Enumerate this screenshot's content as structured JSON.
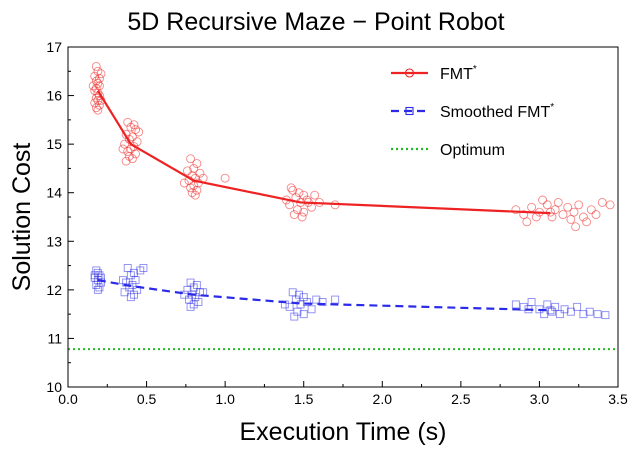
{
  "chart_data": {
    "type": "scatter",
    "title": "5D Recursive Maze − Point Robot",
    "xlabel": "Execution Time (s)",
    "ylabel": "Solution Cost",
    "xlim": [
      0,
      3.5
    ],
    "ylim": [
      10,
      17
    ],
    "xticks": [
      "0.0",
      "0.5",
      "1.0",
      "1.5",
      "2.0",
      "2.5",
      "3.0",
      "3.5"
    ],
    "yticks": [
      "10",
      "11",
      "12",
      "13",
      "14",
      "15",
      "16",
      "17"
    ],
    "grid": false,
    "legend_position": "top-right",
    "series": [
      {
        "name": "FMT*",
        "legend_base": "FMT",
        "legend_sup": "*",
        "color": "#ee2222",
        "marker": "circle",
        "line_style": "solid",
        "mean_x": [
          0.19,
          0.4,
          0.8,
          1.48,
          3.07
        ],
        "mean_y": [
          16.1,
          15.0,
          14.25,
          13.8,
          13.58
        ],
        "points": [
          [
            0.18,
            16.6
          ],
          [
            0.19,
            16.5
          ],
          [
            0.17,
            16.4
          ],
          [
            0.2,
            16.35
          ],
          [
            0.18,
            16.3
          ],
          [
            0.19,
            16.25
          ],
          [
            0.2,
            16.2
          ],
          [
            0.18,
            16.15
          ],
          [
            0.17,
            16.1
          ],
          [
            0.19,
            16.05
          ],
          [
            0.2,
            16.0
          ],
          [
            0.18,
            15.95
          ],
          [
            0.19,
            15.9
          ],
          [
            0.17,
            15.85
          ],
          [
            0.2,
            15.8
          ],
          [
            0.18,
            15.75
          ],
          [
            0.19,
            15.7
          ],
          [
            0.21,
            16.45
          ],
          [
            0.16,
            16.2
          ],
          [
            0.21,
            15.9
          ],
          [
            0.38,
            15.45
          ],
          [
            0.42,
            15.4
          ],
          [
            0.4,
            15.35
          ],
          [
            0.43,
            15.3
          ],
          [
            0.37,
            15.2
          ],
          [
            0.41,
            15.15
          ],
          [
            0.39,
            15.1
          ],
          [
            0.44,
            15.05
          ],
          [
            0.36,
            15.0
          ],
          [
            0.42,
            14.95
          ],
          [
            0.4,
            14.9
          ],
          [
            0.38,
            14.85
          ],
          [
            0.43,
            14.8
          ],
          [
            0.39,
            14.75
          ],
          [
            0.41,
            14.7
          ],
          [
            0.37,
            14.65
          ],
          [
            0.45,
            15.25
          ],
          [
            0.35,
            14.9
          ],
          [
            0.78,
            14.7
          ],
          [
            0.82,
            14.6
          ],
          [
            0.8,
            14.5
          ],
          [
            0.76,
            14.45
          ],
          [
            0.84,
            14.4
          ],
          [
            0.79,
            14.35
          ],
          [
            0.81,
            14.3
          ],
          [
            0.77,
            14.25
          ],
          [
            0.83,
            14.2
          ],
          [
            0.8,
            14.15
          ],
          [
            0.78,
            14.1
          ],
          [
            0.82,
            14.05
          ],
          [
            0.79,
            14.0
          ],
          [
            0.86,
            14.3
          ],
          [
            0.74,
            14.2
          ],
          [
            0.81,
            13.95
          ],
          [
            1.0,
            14.3
          ],
          [
            1.43,
            14.05
          ],
          [
            1.47,
            14.0
          ],
          [
            1.5,
            13.95
          ],
          [
            1.45,
            13.9
          ],
          [
            1.52,
            13.85
          ],
          [
            1.48,
            13.8
          ],
          [
            1.41,
            13.75
          ],
          [
            1.55,
            13.7
          ],
          [
            1.46,
            13.65
          ],
          [
            1.5,
            13.6
          ],
          [
            1.44,
            13.55
          ],
          [
            1.53,
            13.8
          ],
          [
            1.39,
            13.85
          ],
          [
            1.57,
            13.95
          ],
          [
            1.49,
            13.5
          ],
          [
            1.6,
            13.8
          ],
          [
            1.7,
            13.75
          ],
          [
            1.42,
            14.1
          ],
          [
            2.85,
            13.65
          ],
          [
            2.9,
            13.55
          ],
          [
            2.95,
            13.7
          ],
          [
            3.0,
            13.6
          ],
          [
            3.05,
            13.75
          ],
          [
            3.08,
            13.5
          ],
          [
            3.1,
            13.65
          ],
          [
            3.12,
            13.8
          ],
          [
            3.15,
            13.55
          ],
          [
            3.18,
            13.7
          ],
          [
            3.2,
            13.45
          ],
          [
            3.22,
            13.6
          ],
          [
            3.25,
            13.75
          ],
          [
            3.28,
            13.5
          ],
          [
            3.3,
            13.4
          ],
          [
            3.33,
            13.65
          ],
          [
            3.36,
            13.55
          ],
          [
            3.4,
            13.8
          ],
          [
            3.45,
            13.75
          ],
          [
            3.23,
            13.3
          ],
          [
            2.92,
            13.4
          ],
          [
            3.02,
            13.85
          ],
          [
            2.98,
            13.5
          ],
          [
            3.07,
            13.6
          ]
        ]
      },
      {
        "name": "Smoothed FMT*",
        "legend_base": "Smoothed FMT",
        "legend_sup": "*",
        "color": "#2a2ae8",
        "marker": "square",
        "line_style": "dashed",
        "mean_x": [
          0.19,
          0.4,
          0.8,
          1.48,
          3.07
        ],
        "mean_y": [
          12.2,
          12.08,
          11.9,
          11.72,
          11.58
        ],
        "points": [
          [
            0.18,
            12.4
          ],
          [
            0.19,
            12.35
          ],
          [
            0.2,
            12.3
          ],
          [
            0.17,
            12.25
          ],
          [
            0.19,
            12.2
          ],
          [
            0.21,
            12.15
          ],
          [
            0.18,
            12.1
          ],
          [
            0.2,
            12.05
          ],
          [
            0.19,
            12.0
          ],
          [
            0.17,
            12.3
          ],
          [
            0.21,
            12.25
          ],
          [
            0.38,
            12.45
          ],
          [
            0.42,
            12.35
          ],
          [
            0.4,
            12.3
          ],
          [
            0.43,
            12.2
          ],
          [
            0.37,
            12.15
          ],
          [
            0.41,
            12.1
          ],
          [
            0.39,
            12.05
          ],
          [
            0.44,
            12.0
          ],
          [
            0.36,
            11.95
          ],
          [
            0.42,
            11.9
          ],
          [
            0.4,
            11.85
          ],
          [
            0.46,
            12.4
          ],
          [
            0.48,
            12.45
          ],
          [
            0.35,
            12.2
          ],
          [
            0.78,
            12.15
          ],
          [
            0.82,
            12.1
          ],
          [
            0.8,
            12.05
          ],
          [
            0.76,
            12.0
          ],
          [
            0.84,
            11.95
          ],
          [
            0.79,
            11.9
          ],
          [
            0.81,
            11.85
          ],
          [
            0.77,
            11.8
          ],
          [
            0.83,
            11.75
          ],
          [
            0.8,
            11.7
          ],
          [
            0.78,
            11.65
          ],
          [
            0.86,
            11.95
          ],
          [
            0.74,
            11.9
          ],
          [
            1.43,
            11.95
          ],
          [
            1.47,
            11.9
          ],
          [
            1.5,
            11.85
          ],
          [
            1.45,
            11.8
          ],
          [
            1.52,
            11.75
          ],
          [
            1.48,
            11.7
          ],
          [
            1.41,
            11.65
          ],
          [
            1.55,
            11.6
          ],
          [
            1.46,
            11.55
          ],
          [
            1.5,
            11.5
          ],
          [
            1.44,
            11.45
          ],
          [
            1.58,
            11.8
          ],
          [
            1.62,
            11.75
          ],
          [
            1.38,
            11.7
          ],
          [
            1.7,
            11.8
          ],
          [
            2.85,
            11.7
          ],
          [
            2.9,
            11.65
          ],
          [
            2.95,
            11.75
          ],
          [
            3.0,
            11.6
          ],
          [
            3.05,
            11.7
          ],
          [
            3.08,
            11.55
          ],
          [
            3.1,
            11.65
          ],
          [
            3.13,
            11.5
          ],
          [
            3.16,
            11.6
          ],
          [
            3.2,
            11.55
          ],
          [
            3.24,
            11.65
          ],
          [
            3.28,
            11.5
          ],
          [
            3.32,
            11.55
          ],
          [
            3.37,
            11.5
          ],
          [
            3.42,
            11.48
          ],
          [
            2.93,
            11.6
          ],
          [
            3.03,
            11.5
          ],
          [
            3.07,
            11.58
          ]
        ]
      },
      {
        "name": "Optimum",
        "color": "#22bb22",
        "line_style": "dotted",
        "y": 10.78
      }
    ]
  }
}
